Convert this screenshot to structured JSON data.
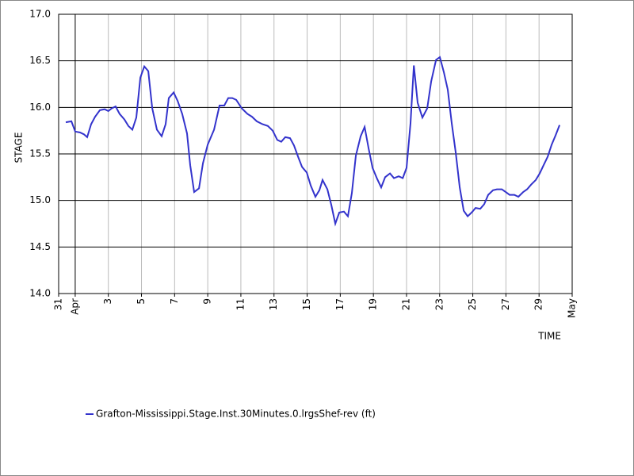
{
  "chart_data": {
    "type": "line",
    "x_label": "TIME",
    "y_label": "STAGE",
    "xlim": [
      0,
      31
    ],
    "ylim": [
      14.0,
      17.0
    ],
    "xticks": [
      {
        "value": 0,
        "label": "31"
      },
      {
        "value": 1,
        "label": "Apr"
      },
      3,
      5,
      7,
      9,
      11,
      13,
      15,
      17,
      19,
      21,
      23,
      25,
      27,
      29,
      {
        "value": 31,
        "label": "May"
      }
    ],
    "yticks": [
      {
        "value": 14.0,
        "label": "14.0"
      },
      {
        "value": 14.5,
        "label": "14.5"
      },
      {
        "value": 15.0,
        "label": "15.0"
      },
      {
        "value": 15.5,
        "label": "15.5"
      },
      {
        "value": 16.0,
        "label": "16.0"
      },
      {
        "value": 16.5,
        "label": "16.5"
      },
      {
        "value": 17.0,
        "label": "17.0"
      }
    ],
    "grid": true,
    "x": [
      0.43,
      0.77,
      1.0,
      1.29,
      1.53,
      1.72,
      1.96,
      2.2,
      2.49,
      2.78,
      3.0,
      3.21,
      3.44,
      3.68,
      3.97,
      4.21,
      4.45,
      4.69,
      4.93,
      5.17,
      5.41,
      5.65,
      5.93,
      6.22,
      6.46,
      6.65,
      6.94,
      7.18,
      7.46,
      7.75,
      7.94,
      8.18,
      8.47,
      8.71,
      9.0,
      9.38,
      9.71,
      10.0,
      10.24,
      10.48,
      10.72,
      11.05,
      11.39,
      11.67,
      11.96,
      12.3,
      12.63,
      12.92,
      13.2,
      13.44,
      13.68,
      13.97,
      14.21,
      14.45,
      14.69,
      14.98,
      15.22,
      15.5,
      15.74,
      15.93,
      16.22,
      16.46,
      16.7,
      16.94,
      17.22,
      17.46,
      17.7,
      17.94,
      18.23,
      18.47,
      18.71,
      18.95,
      19.23,
      19.47,
      19.71,
      20.0,
      20.24,
      20.53,
      20.77,
      21.0,
      21.24,
      21.44,
      21.67,
      21.96,
      22.25,
      22.49,
      22.78,
      23.01,
      23.25,
      23.49,
      23.73,
      23.97,
      24.21,
      24.45,
      24.69,
      24.93,
      25.17,
      25.45,
      25.69,
      25.93,
      26.22,
      26.46,
      26.75,
      26.99,
      27.22,
      27.51,
      27.75,
      28.04,
      28.28,
      28.52,
      28.8,
      29.04,
      29.28,
      29.52,
      29.76,
      30.0,
      30.24
    ],
    "series": [
      {
        "name": "Grafton-Mississippi.Stage.Inst.30Minutes.0.lrgsShef-rev (ft)",
        "color": "#3333cc",
        "values": [
          15.84,
          15.85,
          15.74,
          15.73,
          15.71,
          15.68,
          15.82,
          15.9,
          15.97,
          15.98,
          15.96,
          15.99,
          16.01,
          15.93,
          15.87,
          15.8,
          15.76,
          15.89,
          16.32,
          16.44,
          16.39,
          15.99,
          15.76,
          15.69,
          15.82,
          16.1,
          16.16,
          16.07,
          15.93,
          15.72,
          15.38,
          15.09,
          15.13,
          15.4,
          15.6,
          15.76,
          16.02,
          16.02,
          16.1,
          16.1,
          16.08,
          15.99,
          15.93,
          15.9,
          15.85,
          15.82,
          15.8,
          15.75,
          15.65,
          15.63,
          15.68,
          15.67,
          15.59,
          15.47,
          15.36,
          15.3,
          15.16,
          15.04,
          15.11,
          15.22,
          15.12,
          14.95,
          14.75,
          14.87,
          14.88,
          14.83,
          15.08,
          15.48,
          15.69,
          15.79,
          15.56,
          15.35,
          15.23,
          15.14,
          15.25,
          15.29,
          15.24,
          15.26,
          15.24,
          15.35,
          15.83,
          16.45,
          16.05,
          15.89,
          15.99,
          16.28,
          16.51,
          16.54,
          16.38,
          16.19,
          15.83,
          15.51,
          15.14,
          14.89,
          14.83,
          14.87,
          14.92,
          14.91,
          14.96,
          15.06,
          15.11,
          15.12,
          15.12,
          15.09,
          15.06,
          15.06,
          15.04,
          15.09,
          15.12,
          15.17,
          15.22,
          15.29,
          15.38,
          15.47,
          15.6,
          15.7,
          15.81
        ]
      }
    ]
  }
}
